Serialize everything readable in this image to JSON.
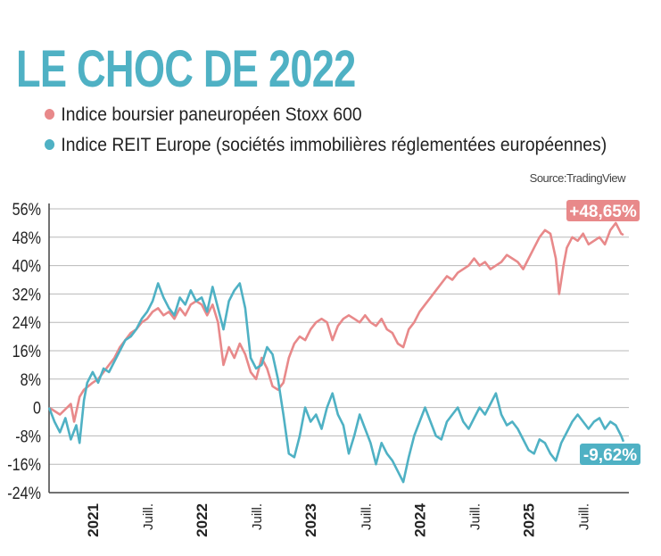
{
  "chart_data": {
    "type": "line",
    "title": "LE CHOC DE 2022",
    "source": "Source:TradingView",
    "xlabel": "",
    "ylabel": "",
    "ylim": [
      -24,
      56
    ],
    "y_ticks": [
      "56%",
      "48%",
      "40%",
      "32%",
      "24%",
      "16%",
      "8%",
      "0",
      "-8%",
      "-16%",
      "-24%"
    ],
    "x_ticks": [
      {
        "label": "2021",
        "t": 2021.0,
        "bold": true
      },
      {
        "label": "Juill.",
        "t": 2021.5,
        "bold": false
      },
      {
        "label": "2022",
        "t": 2022.0,
        "bold": true
      },
      {
        "label": "Juill.",
        "t": 2022.5,
        "bold": false
      },
      {
        "label": "2023",
        "t": 2023.0,
        "bold": true
      },
      {
        "label": "Juill.",
        "t": 2023.5,
        "bold": false
      },
      {
        "label": "2024",
        "t": 2024.0,
        "bold": true
      },
      {
        "label": "Juill.",
        "t": 2024.5,
        "bold": false
      },
      {
        "label": "2025",
        "t": 2025.0,
        "bold": true
      },
      {
        "label": "Juill.",
        "t": 2025.5,
        "bold": false
      }
    ],
    "grid": true,
    "legend_position": "top-left",
    "series": [
      {
        "name": "Indice boursier paneuropéen Stoxx 600",
        "color": "#e8898a",
        "end_label": "+48,65%",
        "points": [
          [
            2020.6,
            0
          ],
          [
            2020.7,
            -2
          ],
          [
            2020.8,
            1
          ],
          [
            2020.83,
            -4
          ],
          [
            2020.88,
            3
          ],
          [
            2020.92,
            5
          ],
          [
            2021.0,
            7
          ],
          [
            2021.05,
            8
          ],
          [
            2021.1,
            10
          ],
          [
            2021.15,
            12
          ],
          [
            2021.2,
            14
          ],
          [
            2021.25,
            17
          ],
          [
            2021.3,
            19
          ],
          [
            2021.35,
            21
          ],
          [
            2021.4,
            22
          ],
          [
            2021.45,
            24
          ],
          [
            2021.5,
            25
          ],
          [
            2021.55,
            27
          ],
          [
            2021.6,
            28
          ],
          [
            2021.65,
            26
          ],
          [
            2021.7,
            27
          ],
          [
            2021.75,
            25
          ],
          [
            2021.8,
            28
          ],
          [
            2021.85,
            26
          ],
          [
            2021.9,
            29
          ],
          [
            2021.95,
            30
          ],
          [
            2022.0,
            29
          ],
          [
            2022.05,
            26
          ],
          [
            2022.1,
            29
          ],
          [
            2022.15,
            24
          ],
          [
            2022.2,
            12
          ],
          [
            2022.25,
            17
          ],
          [
            2022.3,
            14
          ],
          [
            2022.35,
            18
          ],
          [
            2022.4,
            15
          ],
          [
            2022.45,
            10
          ],
          [
            2022.5,
            8
          ],
          [
            2022.55,
            14
          ],
          [
            2022.6,
            11
          ],
          [
            2022.65,
            6
          ],
          [
            2022.7,
            5
          ],
          [
            2022.75,
            7
          ],
          [
            2022.8,
            14
          ],
          [
            2022.85,
            18
          ],
          [
            2022.9,
            20
          ],
          [
            2022.95,
            19
          ],
          [
            2023.0,
            22
          ],
          [
            2023.05,
            24
          ],
          [
            2023.1,
            25
          ],
          [
            2023.15,
            24
          ],
          [
            2023.2,
            19
          ],
          [
            2023.25,
            23
          ],
          [
            2023.3,
            25
          ],
          [
            2023.35,
            26
          ],
          [
            2023.4,
            25
          ],
          [
            2023.45,
            24
          ],
          [
            2023.5,
            26
          ],
          [
            2023.55,
            24
          ],
          [
            2023.6,
            23
          ],
          [
            2023.65,
            25
          ],
          [
            2023.7,
            22
          ],
          [
            2023.75,
            21
          ],
          [
            2023.8,
            18
          ],
          [
            2023.85,
            17
          ],
          [
            2023.9,
            22
          ],
          [
            2023.95,
            24
          ],
          [
            2024.0,
            27
          ],
          [
            2024.05,
            29
          ],
          [
            2024.1,
            31
          ],
          [
            2024.15,
            33
          ],
          [
            2024.2,
            35
          ],
          [
            2024.25,
            37
          ],
          [
            2024.3,
            36
          ],
          [
            2024.35,
            38
          ],
          [
            2024.4,
            39
          ],
          [
            2024.45,
            40
          ],
          [
            2024.5,
            42
          ],
          [
            2024.55,
            40
          ],
          [
            2024.6,
            41
          ],
          [
            2024.65,
            39
          ],
          [
            2024.7,
            40
          ],
          [
            2024.75,
            41
          ],
          [
            2024.8,
            43
          ],
          [
            2024.85,
            42
          ],
          [
            2024.9,
            41
          ],
          [
            2024.95,
            39
          ],
          [
            2025.0,
            42
          ],
          [
            2025.05,
            45
          ],
          [
            2025.1,
            48
          ],
          [
            2025.15,
            50
          ],
          [
            2025.2,
            49
          ],
          [
            2025.25,
            42
          ],
          [
            2025.28,
            32
          ],
          [
            2025.32,
            40
          ],
          [
            2025.35,
            45
          ],
          [
            2025.4,
            48
          ],
          [
            2025.45,
            47
          ],
          [
            2025.5,
            49
          ],
          [
            2025.55,
            46
          ],
          [
            2025.6,
            47
          ],
          [
            2025.65,
            48
          ],
          [
            2025.7,
            46
          ],
          [
            2025.75,
            50
          ],
          [
            2025.8,
            52
          ],
          [
            2025.85,
            49
          ],
          [
            2025.87,
            48.65
          ]
        ]
      },
      {
        "name": "Indice REIT Europe (sociétés immobilières réglementées européennes)",
        "color": "#4fb1c4",
        "end_label": "-9,62%",
        "points": [
          [
            2020.6,
            0
          ],
          [
            2020.65,
            -4
          ],
          [
            2020.7,
            -7
          ],
          [
            2020.75,
            -3
          ],
          [
            2020.8,
            -9
          ],
          [
            2020.85,
            -5
          ],
          [
            2020.88,
            -10
          ],
          [
            2020.92,
            2
          ],
          [
            2020.95,
            7
          ],
          [
            2021.0,
            10
          ],
          [
            2021.05,
            7
          ],
          [
            2021.1,
            11
          ],
          [
            2021.15,
            10
          ],
          [
            2021.2,
            13
          ],
          [
            2021.25,
            16
          ],
          [
            2021.3,
            19
          ],
          [
            2021.35,
            20
          ],
          [
            2021.4,
            22
          ],
          [
            2021.45,
            25
          ],
          [
            2021.5,
            27
          ],
          [
            2021.55,
            30
          ],
          [
            2021.6,
            35
          ],
          [
            2021.65,
            31
          ],
          [
            2021.7,
            28
          ],
          [
            2021.75,
            26
          ],
          [
            2021.8,
            31
          ],
          [
            2021.85,
            29
          ],
          [
            2021.9,
            33
          ],
          [
            2021.95,
            30
          ],
          [
            2022.0,
            31
          ],
          [
            2022.05,
            27
          ],
          [
            2022.1,
            34
          ],
          [
            2022.15,
            28
          ],
          [
            2022.2,
            22
          ],
          [
            2022.25,
            30
          ],
          [
            2022.3,
            33
          ],
          [
            2022.35,
            35
          ],
          [
            2022.4,
            28
          ],
          [
            2022.45,
            14
          ],
          [
            2022.5,
            11
          ],
          [
            2022.55,
            12
          ],
          [
            2022.6,
            17
          ],
          [
            2022.65,
            15
          ],
          [
            2022.7,
            8
          ],
          [
            2022.75,
            -2
          ],
          [
            2022.8,
            -13
          ],
          [
            2022.85,
            -14
          ],
          [
            2022.9,
            -8
          ],
          [
            2022.95,
            0
          ],
          [
            2023.0,
            -4
          ],
          [
            2023.05,
            -2
          ],
          [
            2023.1,
            -6
          ],
          [
            2023.15,
            0
          ],
          [
            2023.2,
            4
          ],
          [
            2023.25,
            -2
          ],
          [
            2023.3,
            -5
          ],
          [
            2023.35,
            -13
          ],
          [
            2023.4,
            -8
          ],
          [
            2023.45,
            -2
          ],
          [
            2023.5,
            -6
          ],
          [
            2023.55,
            -10
          ],
          [
            2023.6,
            -16
          ],
          [
            2023.65,
            -10
          ],
          [
            2023.7,
            -13
          ],
          [
            2023.75,
            -15
          ],
          [
            2023.8,
            -18
          ],
          [
            2023.85,
            -21
          ],
          [
            2023.9,
            -14
          ],
          [
            2023.95,
            -8
          ],
          [
            2024.0,
            -4
          ],
          [
            2024.05,
            0
          ],
          [
            2024.1,
            -4
          ],
          [
            2024.15,
            -8
          ],
          [
            2024.2,
            -9
          ],
          [
            2024.25,
            -4
          ],
          [
            2024.3,
            -2
          ],
          [
            2024.35,
            0
          ],
          [
            2024.4,
            -4
          ],
          [
            2024.45,
            -6
          ],
          [
            2024.5,
            -3
          ],
          [
            2024.55,
            0
          ],
          [
            2024.6,
            -2
          ],
          [
            2024.65,
            1
          ],
          [
            2024.7,
            4
          ],
          [
            2024.75,
            -2
          ],
          [
            2024.8,
            -5
          ],
          [
            2024.85,
            -4
          ],
          [
            2024.9,
            -6
          ],
          [
            2024.95,
            -9
          ],
          [
            2025.0,
            -12
          ],
          [
            2025.05,
            -13
          ],
          [
            2025.1,
            -9
          ],
          [
            2025.15,
            -10
          ],
          [
            2025.2,
            -13
          ],
          [
            2025.25,
            -15
          ],
          [
            2025.3,
            -10
          ],
          [
            2025.35,
            -7
          ],
          [
            2025.4,
            -4
          ],
          [
            2025.45,
            -2
          ],
          [
            2025.5,
            -4
          ],
          [
            2025.55,
            -6
          ],
          [
            2025.6,
            -4
          ],
          [
            2025.65,
            -3
          ],
          [
            2025.7,
            -6
          ],
          [
            2025.75,
            -4
          ],
          [
            2025.8,
            -5
          ],
          [
            2025.85,
            -8
          ],
          [
            2025.87,
            -9.62
          ]
        ]
      }
    ]
  }
}
